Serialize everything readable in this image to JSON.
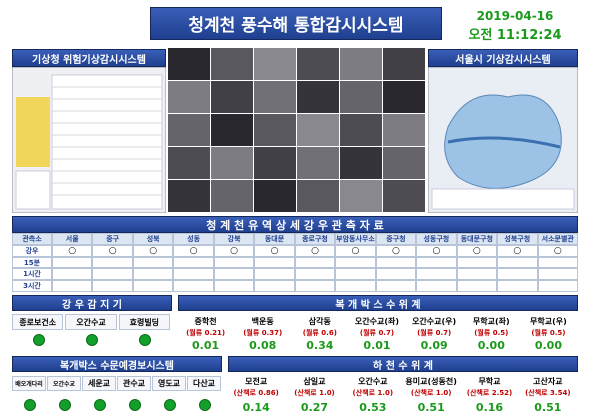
{
  "header": {
    "title": "청계천 풍수해 통합감시시스템",
    "date": "2019-04-16",
    "time": "오전 11:12:24"
  },
  "panels": {
    "kma": "기상청 위험기상감시시스템",
    "seoul": "서울시 기상감시시스템"
  },
  "rainfall": {
    "title": "청 계 천 유 역 상 세 강 우 관 측 자 료",
    "header": [
      "관측소",
      "서울",
      "중구",
      "성북",
      "성동",
      "강북",
      "동대문",
      "종로구청",
      "부암동사무소",
      "중구청",
      "성동구청",
      "동대문구청",
      "성북구청",
      "서소문별관"
    ],
    "rows": [
      [
        "강우",
        "○",
        "○",
        "○",
        "○",
        "○",
        "○",
        "○",
        "○",
        "○",
        "○",
        "○",
        "○",
        "○"
      ],
      [
        "15분"
      ],
      [
        "1시간"
      ],
      [
        "3시간"
      ]
    ]
  },
  "rain_sensors": {
    "title": "강 우 감 지 기",
    "stations": [
      "종로보건소",
      "오간수교",
      "효령빌딩"
    ]
  },
  "box_level": {
    "title": "복 개 박 스 수 위 계",
    "stations": [
      {
        "name": "중학천",
        "limit": "(월류 0.21)",
        "value": "0.01"
      },
      {
        "name": "백운동",
        "limit": "(월류 0.37)",
        "value": "0.08"
      },
      {
        "name": "삼각동",
        "limit": "(월류 0.6)",
        "value": "0.34"
      },
      {
        "name": "오간수교(좌)",
        "limit": "(월류 0.7)",
        "value": "0.01"
      },
      {
        "name": "오간수교(우)",
        "limit": "(월류 0.7)",
        "value": "0.09"
      },
      {
        "name": "무학교(좌)",
        "limit": "(월류 0.5)",
        "value": "0.00"
      },
      {
        "name": "무학교(우)",
        "limit": "(월류 0.5)",
        "value": "0.00"
      }
    ]
  },
  "gate_alarm": {
    "title": "복개박스 수문예경보시스템",
    "stations": [
      "배오개다리",
      "오간수교",
      "세운교",
      "관수교",
      "영도교",
      "다산교"
    ]
  },
  "river_level": {
    "title": "하 천 수 위 계",
    "stations": [
      {
        "name": "모전교",
        "limit": "(산책로 0.86)",
        "value": "0.14"
      },
      {
        "name": "삼일교",
        "limit": "(산책로 1.0)",
        "value": "0.27"
      },
      {
        "name": "오간수교",
        "limit": "(산책로 1.0)",
        "value": "0.53"
      },
      {
        "name": "용미교(성동천)",
        "limit": "(산책로 1.0)",
        "value": "0.51"
      },
      {
        "name": "무학교",
        "limit": "(산책로 2.52)",
        "value": "0.16"
      },
      {
        "name": "고산자교",
        "limit": "(산책로 3.54)",
        "value": "0.51"
      }
    ]
  }
}
